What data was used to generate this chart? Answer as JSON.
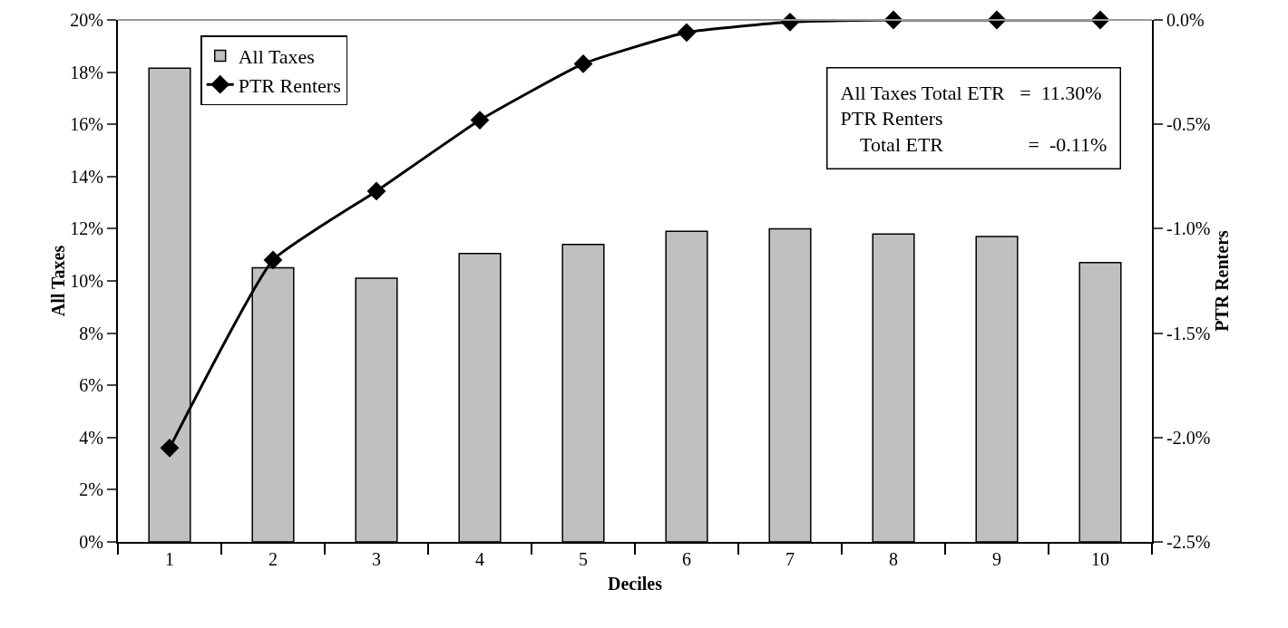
{
  "chart_data": {
    "type": "bar",
    "xlabel": "Deciles",
    "ylabel": "All Taxes",
    "y2label": "PTR Renters",
    "categories": [
      "1",
      "2",
      "3",
      "4",
      "5",
      "6",
      "7",
      "8",
      "9",
      "10"
    ],
    "series": [
      {
        "name": "All Taxes",
        "color": "#c0c0c0",
        "values": [
          18.15,
          10.5,
          10.1,
          11.05,
          11.4,
          11.9,
          12.0,
          11.8,
          11.7,
          10.7
        ]
      },
      {
        "name": "PTR Renters",
        "type": "line",
        "axis": "y2",
        "color": "#000000",
        "values": [
          -2.05,
          -1.15,
          -0.82,
          -0.48,
          -0.21,
          -0.06,
          -0.01,
          0.0,
          0.0,
          0.0
        ]
      }
    ],
    "ylim": [
      0,
      20
    ],
    "yticks": [
      {
        "value": 0,
        "label": "0%"
      },
      {
        "value": 2,
        "label": "2%"
      },
      {
        "value": 4,
        "label": "4%"
      },
      {
        "value": 6,
        "label": "6%"
      },
      {
        "value": 8,
        "label": "8%"
      },
      {
        "value": 10,
        "label": "10%"
      },
      {
        "value": 12,
        "label": "12%"
      },
      {
        "value": 14,
        "label": "14%"
      },
      {
        "value": 16,
        "label": "16%"
      },
      {
        "value": 18,
        "label": "18%"
      },
      {
        "value": 20,
        "label": "20%"
      }
    ],
    "y2lim": [
      -2.5,
      0
    ],
    "y2ticks": [
      {
        "value": -2.5,
        "label": "-2.5%"
      },
      {
        "value": -2.0,
        "label": "-2.0%"
      },
      {
        "value": -1.5,
        "label": "-1.5%"
      },
      {
        "value": -1.0,
        "label": "-1.0%"
      },
      {
        "value": -0.5,
        "label": "-0.5%"
      },
      {
        "value": 0,
        "label": "0.0%"
      }
    ],
    "annotations": [
      "All Taxes Total ETR   =  11.30%\nPTR Renters\n    Total ETR                 =  -0.11%"
    ],
    "legend": "top left",
    "marker": "diamond",
    "line_style": "solid",
    "grid": false
  }
}
